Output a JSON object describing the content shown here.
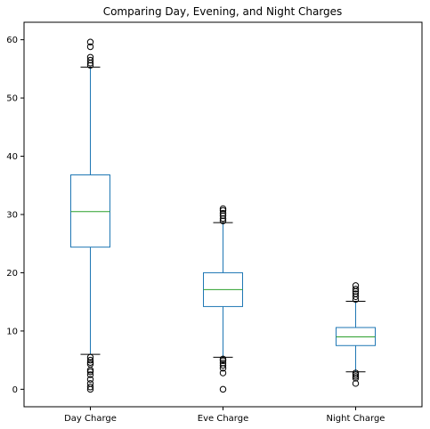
{
  "chart_data": {
    "type": "boxplot",
    "title": "Comparing Day, Evening, and Night Charges",
    "xlabel": "",
    "ylabel": "",
    "ylim": [
      -3,
      63
    ],
    "yticks": [
      0,
      10,
      20,
      30,
      40,
      50,
      60
    ],
    "grid": false,
    "categories": [
      "Day Charge",
      "Eve Charge",
      "Night Charge"
    ],
    "boxes": [
      {
        "label": "Day Charge",
        "whisker_low": 6.0,
        "q1": 24.4,
        "median": 30.5,
        "q3": 36.8,
        "whisker_high": 55.3,
        "outliers": [
          0.0,
          0.4,
          1.0,
          1.7,
          2.5,
          3.0,
          3.3,
          4.3,
          4.6,
          5.0,
          5.5,
          55.6,
          56.0,
          56.5,
          57.0,
          58.8,
          59.6
        ]
      },
      {
        "label": "Eve Charge",
        "whisker_low": 5.5,
        "q1": 14.2,
        "median": 17.1,
        "q3": 20.0,
        "whisker_high": 28.6,
        "outliers": [
          0.0,
          2.8,
          3.6,
          4.1,
          4.5,
          4.9,
          5.2,
          28.9,
          29.3,
          29.8,
          30.2,
          30.7,
          31.0
        ]
      },
      {
        "label": "Night Charge",
        "whisker_low": 3.0,
        "q1": 7.5,
        "median": 9.0,
        "q3": 10.6,
        "whisker_high": 15.1,
        "outliers": [
          1.0,
          1.9,
          2.2,
          2.5,
          2.8,
          15.4,
          15.9,
          16.4,
          16.8,
          17.2,
          17.8
        ]
      }
    ],
    "colors": {
      "box": "#1f77b4",
      "median": "#2ca02c",
      "whisker_cap": "#000000",
      "outlier": "#000000"
    }
  }
}
